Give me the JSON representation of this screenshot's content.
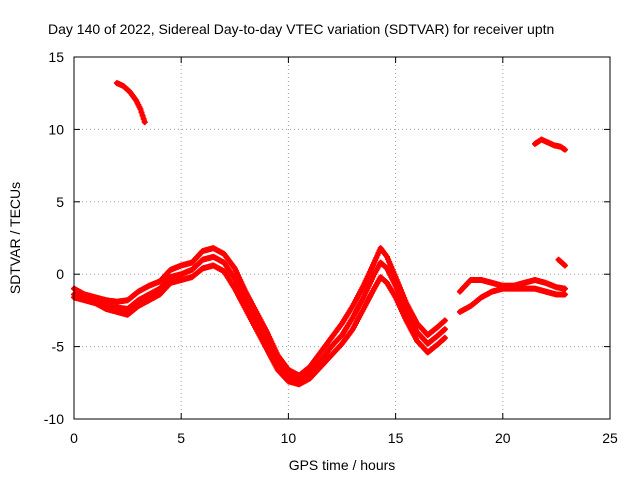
{
  "chart_data": {
    "type": "scatter",
    "title": "Day 140 of 2022, Sidereal Day-to-day VTEC variation (SDTVAR) for receiver uptn",
    "xlabel": "GPS time / hours",
    "ylabel": "SDTVAR / TECUs",
    "xlim": [
      0,
      25
    ],
    "ylim": [
      -10,
      15
    ],
    "xticks": [
      0,
      5,
      10,
      15,
      20,
      25
    ],
    "yticks": [
      -10,
      -5,
      0,
      5,
      10,
      15
    ],
    "grid": true,
    "marker": "+",
    "series": [
      {
        "name": "trace-1",
        "color": "#ff0000",
        "points": [
          [
            0,
            -1.0
          ],
          [
            0.5,
            -1.4
          ],
          [
            1.0,
            -1.6
          ],
          [
            1.5,
            -1.8
          ],
          [
            2.0,
            -1.9
          ],
          [
            2.5,
            -1.8
          ],
          [
            3.0,
            -1.2
          ],
          [
            3.5,
            -0.8
          ],
          [
            4.0,
            -0.5
          ],
          [
            4.5,
            0.3
          ],
          [
            5.0,
            0.6
          ],
          [
            5.5,
            0.8
          ],
          [
            6.0,
            1.6
          ],
          [
            6.5,
            1.8
          ],
          [
            7.0,
            1.4
          ],
          [
            7.5,
            0.4
          ],
          [
            8.0,
            -1.2
          ],
          [
            8.5,
            -2.6
          ],
          [
            9.0,
            -4.0
          ],
          [
            9.5,
            -5.6
          ],
          [
            10.0,
            -6.6
          ],
          [
            10.5,
            -7.0
          ],
          [
            11.0,
            -6.4
          ],
          [
            11.5,
            -5.4
          ],
          [
            12.0,
            -4.4
          ],
          [
            12.5,
            -3.4
          ],
          [
            13.0,
            -2.2
          ],
          [
            13.5,
            -0.8
          ],
          [
            14.0,
            0.8
          ],
          [
            14.3,
            1.8
          ],
          [
            14.6,
            1.2
          ],
          [
            15.0,
            -0.2
          ],
          [
            15.5,
            -2.0
          ],
          [
            16.0,
            -3.4
          ],
          [
            16.5,
            -4.2
          ],
          [
            17.0,
            -3.6
          ],
          [
            17.3,
            -3.2
          ]
        ]
      },
      {
        "name": "trace-2",
        "color": "#ff0000",
        "points": [
          [
            0,
            -1.4
          ],
          [
            0.5,
            -1.6
          ],
          [
            1.0,
            -1.8
          ],
          [
            1.5,
            -2.2
          ],
          [
            2.0,
            -2.3
          ],
          [
            2.5,
            -2.4
          ],
          [
            3.0,
            -1.8
          ],
          [
            3.5,
            -1.4
          ],
          [
            4.0,
            -1.0
          ],
          [
            4.5,
            -0.2
          ],
          [
            5.0,
            0.0
          ],
          [
            5.5,
            0.3
          ],
          [
            6.0,
            1.0
          ],
          [
            6.5,
            1.2
          ],
          [
            7.0,
            0.8
          ],
          [
            7.5,
            -0.3
          ],
          [
            8.0,
            -1.8
          ],
          [
            8.5,
            -3.2
          ],
          [
            9.0,
            -4.6
          ],
          [
            9.5,
            -6.0
          ],
          [
            10.0,
            -7.0
          ],
          [
            10.5,
            -7.4
          ],
          [
            11.0,
            -6.8
          ],
          [
            11.5,
            -6.0
          ],
          [
            12.0,
            -5.0
          ],
          [
            12.5,
            -4.2
          ],
          [
            13.0,
            -3.0
          ],
          [
            13.5,
            -1.6
          ],
          [
            14.0,
            0.0
          ],
          [
            14.3,
            0.8
          ],
          [
            14.6,
            0.4
          ],
          [
            15.0,
            -0.8
          ],
          [
            15.5,
            -2.6
          ],
          [
            16.0,
            -4.0
          ],
          [
            16.5,
            -4.8
          ],
          [
            17.0,
            -4.2
          ],
          [
            17.3,
            -3.8
          ]
        ]
      },
      {
        "name": "trace-3",
        "color": "#ff0000",
        "points": [
          [
            0,
            -1.6
          ],
          [
            0.5,
            -1.8
          ],
          [
            1.0,
            -2.0
          ],
          [
            1.5,
            -2.4
          ],
          [
            2.0,
            -2.6
          ],
          [
            2.5,
            -2.8
          ],
          [
            3.0,
            -2.2
          ],
          [
            3.5,
            -1.8
          ],
          [
            4.0,
            -1.4
          ],
          [
            4.5,
            -0.6
          ],
          [
            5.0,
            -0.4
          ],
          [
            5.5,
            -0.2
          ],
          [
            6.0,
            0.4
          ],
          [
            6.5,
            0.6
          ],
          [
            7.0,
            0.2
          ],
          [
            7.5,
            -1.0
          ],
          [
            8.0,
            -2.4
          ],
          [
            8.5,
            -3.8
          ],
          [
            9.0,
            -5.2
          ],
          [
            9.5,
            -6.6
          ],
          [
            10.0,
            -7.4
          ],
          [
            10.5,
            -7.6
          ],
          [
            11.0,
            -7.2
          ],
          [
            11.5,
            -6.4
          ],
          [
            12.0,
            -5.6
          ],
          [
            12.5,
            -4.8
          ],
          [
            13.0,
            -3.8
          ],
          [
            13.5,
            -2.4
          ],
          [
            14.0,
            -1.0
          ],
          [
            14.3,
            -0.2
          ],
          [
            14.6,
            -0.6
          ],
          [
            15.0,
            -1.6
          ],
          [
            15.5,
            -3.2
          ],
          [
            16.0,
            -4.6
          ],
          [
            16.5,
            -5.4
          ],
          [
            17.0,
            -4.8
          ],
          [
            17.3,
            -4.4
          ]
        ]
      },
      {
        "name": "trace-4",
        "color": "#ff0000",
        "points": [
          [
            2.0,
            13.2
          ],
          [
            2.3,
            13.0
          ],
          [
            2.6,
            12.6
          ],
          [
            2.9,
            12.0
          ],
          [
            3.1,
            11.4
          ],
          [
            3.3,
            10.5
          ]
        ]
      },
      {
        "name": "trace-5",
        "color": "#ff0000",
        "points": [
          [
            18.0,
            -1.2
          ],
          [
            18.5,
            -0.4
          ],
          [
            19.0,
            -0.4
          ],
          [
            19.5,
            -0.6
          ],
          [
            20.0,
            -0.8
          ],
          [
            20.5,
            -0.8
          ],
          [
            21.0,
            -0.6
          ],
          [
            21.5,
            -0.4
          ],
          [
            22.0,
            -0.6
          ],
          [
            22.5,
            -0.9
          ],
          [
            22.9,
            -1.0
          ]
        ]
      },
      {
        "name": "trace-6",
        "color": "#ff0000",
        "points": [
          [
            18.0,
            -2.6
          ],
          [
            18.5,
            -2.2
          ],
          [
            19.0,
            -1.6
          ],
          [
            19.5,
            -1.2
          ],
          [
            20.0,
            -1.0
          ],
          [
            20.5,
            -1.0
          ],
          [
            21.0,
            -1.0
          ],
          [
            21.5,
            -1.0
          ],
          [
            22.0,
            -1.2
          ],
          [
            22.5,
            -1.4
          ],
          [
            22.9,
            -1.4
          ]
        ]
      },
      {
        "name": "trace-7",
        "color": "#ff0000",
        "points": [
          [
            21.5,
            9.0
          ],
          [
            21.8,
            9.3
          ],
          [
            22.1,
            9.1
          ],
          [
            22.4,
            8.9
          ],
          [
            22.7,
            8.8
          ],
          [
            22.9,
            8.6
          ]
        ]
      },
      {
        "name": "trace-8",
        "color": "#ff0000",
        "points": [
          [
            22.6,
            1.0
          ],
          [
            22.75,
            0.8
          ],
          [
            22.9,
            0.6
          ]
        ]
      }
    ]
  }
}
